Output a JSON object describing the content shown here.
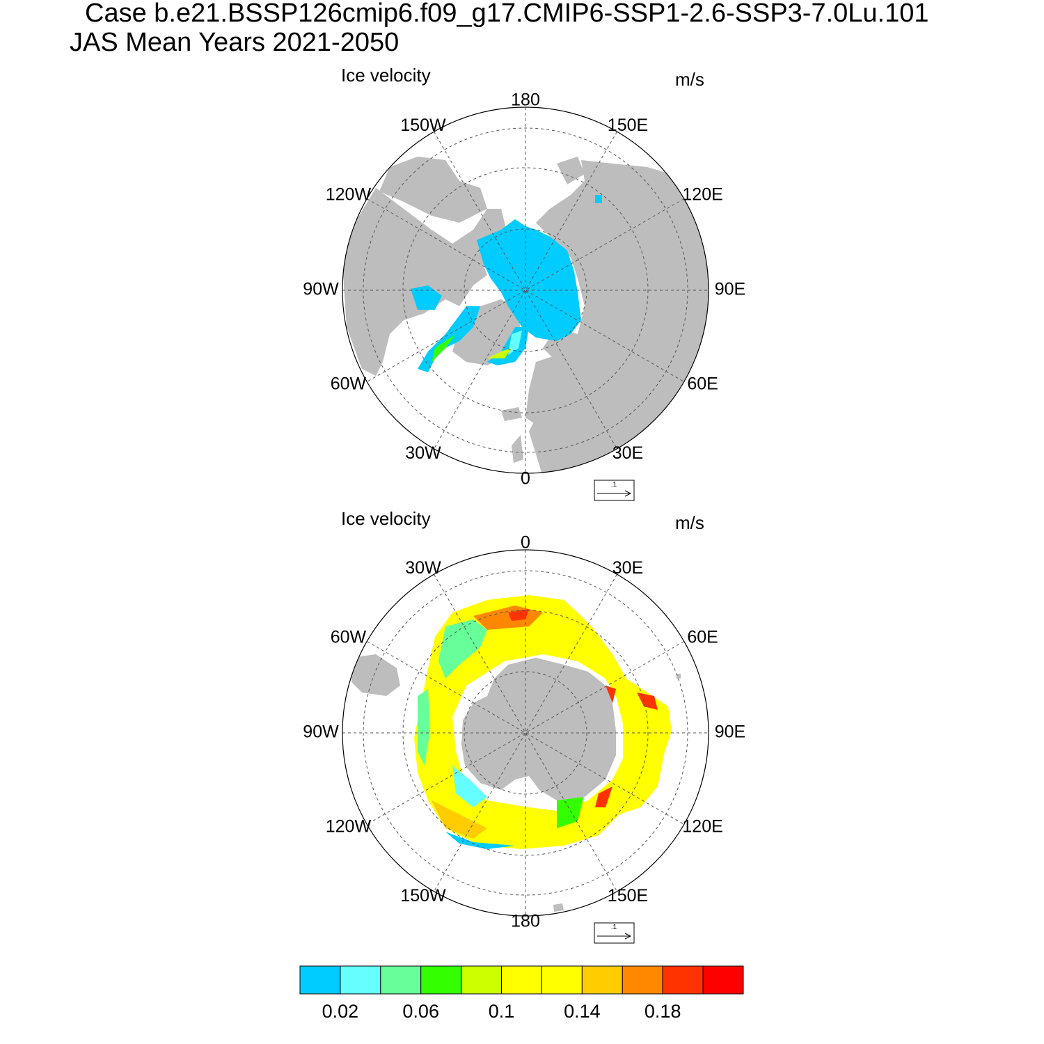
{
  "title": {
    "line1": "Case b.e21.BSSP126cmip6.f09_g17.CMIP6-SSP1-2.6-SSP3-7.0Lu.101",
    "line2": "JAS Mean   Years 2021-2050"
  },
  "panels": [
    {
      "id": "north",
      "label_left": "Ice velocity",
      "label_right": "m/s",
      "lon_labels": [
        "180",
        "150E",
        "120E",
        "90E",
        "60E",
        "30E",
        "0",
        "30W",
        "60W",
        "90W",
        "120W",
        "150W"
      ],
      "ref_vector": ".1"
    },
    {
      "id": "south",
      "label_left": "Ice velocity",
      "label_right": "m/s",
      "lon_labels": [
        "0",
        "30E",
        "60E",
        "90E",
        "120E",
        "150E",
        "180",
        "150W",
        "120W",
        "90W",
        "60W",
        "30W"
      ],
      "ref_vector": ".1"
    }
  ],
  "colorbar": {
    "colors": [
      "#00ccff",
      "#66ffff",
      "#66ff99",
      "#33ff00",
      "#ccff00",
      "#ffff00",
      "#ffff00",
      "#ffcc00",
      "#ff8800",
      "#ff3300",
      "#ff0000"
    ],
    "tick_labels": [
      "0.02",
      "0.06",
      "0.1",
      "0.14",
      "0.18"
    ]
  },
  "colors": {
    "land": "#bdbdbd",
    "ocean": "#ffffff"
  }
}
